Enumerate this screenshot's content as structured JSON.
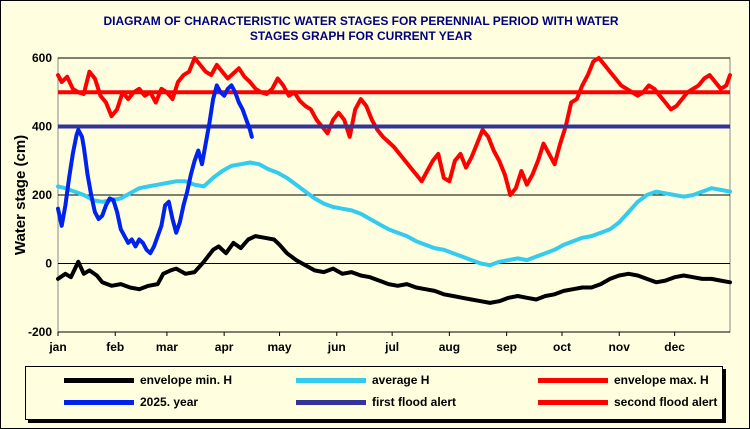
{
  "chart_data": {
    "type": "line",
    "title_line1": "DIAGRAM OF CHARACTERISTIC  WATER STAGES FOR PERENNIAL PERIOD WITH WATER",
    "title_line2": "STAGES GRAPH FOR CURRENT  YEAR",
    "ylabel": "Water stage (cm)",
    "xlabel": "",
    "ylim": [
      -200,
      600
    ],
    "yticks": [
      "600",
      "400",
      "200",
      "0",
      "-200"
    ],
    "ytick_values": [
      600,
      400,
      200,
      0,
      -200
    ],
    "xlim": [
      1,
      365
    ],
    "months": [
      "jan",
      "feb",
      "mar",
      "apr",
      "may",
      "jun",
      "jul",
      "aug",
      "sep",
      "oct",
      "nov",
      "dec"
    ],
    "month_days": [
      1,
      32,
      60,
      91,
      121,
      152,
      182,
      213,
      244,
      274,
      305,
      335
    ],
    "grid": true,
    "legend_position": "bottom",
    "series": [
      {
        "name": "envelope min. H",
        "color": "#000000",
        "x": [
          1,
          5,
          8,
          12,
          15,
          18,
          22,
          25,
          30,
          35,
          40,
          45,
          50,
          55,
          58,
          62,
          65,
          70,
          75,
          80,
          85,
          88,
          92,
          96,
          100,
          104,
          108,
          113,
          118,
          121,
          125,
          130,
          135,
          140,
          145,
          150,
          155,
          160,
          165,
          170,
          175,
          180,
          185,
          190,
          195,
          200,
          205,
          210,
          215,
          220,
          225,
          230,
          235,
          240,
          245,
          250,
          255,
          260,
          265,
          270,
          275,
          280,
          285,
          290,
          295,
          300,
          305,
          310,
          315,
          320,
          325,
          330,
          335,
          340,
          345,
          350,
          355,
          360,
          365
        ],
        "y": [
          -45,
          -30,
          -40,
          5,
          -30,
          -20,
          -35,
          -55,
          -65,
          -60,
          -70,
          -75,
          -65,
          -60,
          -30,
          -20,
          -15,
          -30,
          -25,
          5,
          40,
          50,
          30,
          60,
          45,
          70,
          80,
          75,
          70,
          55,
          30,
          10,
          -5,
          -20,
          -25,
          -15,
          -30,
          -25,
          -35,
          -40,
          -50,
          -60,
          -65,
          -60,
          -70,
          -75,
          -80,
          -90,
          -95,
          -100,
          -105,
          -110,
          -115,
          -110,
          -100,
          -95,
          -100,
          -105,
          -95,
          -90,
          -80,
          -75,
          -70,
          -70,
          -60,
          -45,
          -35,
          -30,
          -35,
          -45,
          -55,
          -50,
          -40,
          -35,
          -40,
          -45,
          -45,
          -50,
          -55
        ]
      },
      {
        "name": "average H",
        "color": "#33ccee",
        "x": [
          1,
          5,
          10,
          15,
          20,
          25,
          30,
          35,
          40,
          45,
          50,
          55,
          60,
          65,
          70,
          75,
          80,
          85,
          90,
          95,
          100,
          105,
          110,
          115,
          120,
          125,
          130,
          135,
          140,
          145,
          150,
          155,
          160,
          165,
          170,
          175,
          180,
          185,
          190,
          195,
          200,
          205,
          210,
          215,
          220,
          225,
          230,
          235,
          240,
          245,
          250,
          255,
          260,
          265,
          270,
          275,
          280,
          285,
          290,
          295,
          300,
          305,
          310,
          315,
          320,
          325,
          330,
          335,
          340,
          345,
          350,
          355,
          360,
          365
        ],
        "y": [
          225,
          220,
          210,
          200,
          185,
          180,
          185,
          190,
          205,
          220,
          225,
          230,
          235,
          240,
          240,
          230,
          225,
          250,
          270,
          285,
          290,
          295,
          290,
          275,
          265,
          250,
          230,
          210,
          190,
          175,
          165,
          160,
          155,
          145,
          130,
          115,
          100,
          90,
          80,
          65,
          55,
          45,
          40,
          30,
          20,
          10,
          0,
          -5,
          5,
          10,
          15,
          10,
          20,
          30,
          40,
          55,
          65,
          75,
          80,
          90,
          100,
          120,
          150,
          180,
          200,
          210,
          205,
          200,
          195,
          200,
          210,
          220,
          215,
          210
        ]
      },
      {
        "name": "envelope max. H",
        "color": "#ff0000",
        "x": [
          1,
          3,
          6,
          9,
          12,
          15,
          18,
          21,
          24,
          27,
          30,
          33,
          36,
          39,
          42,
          45,
          48,
          51,
          54,
          57,
          60,
          63,
          66,
          69,
          72,
          75,
          78,
          81,
          84,
          87,
          90,
          93,
          96,
          99,
          102,
          105,
          108,
          111,
          114,
          117,
          120,
          123,
          126,
          129,
          132,
          135,
          138,
          141,
          144,
          147,
          150,
          153,
          156,
          159,
          162,
          165,
          168,
          171,
          174,
          177,
          180,
          183,
          186,
          189,
          192,
          195,
          198,
          201,
          204,
          207,
          210,
          213,
          216,
          219,
          222,
          225,
          228,
          231,
          234,
          237,
          240,
          243,
          246,
          249,
          252,
          255,
          258,
          261,
          264,
          267,
          270,
          273,
          276,
          279,
          282,
          285,
          288,
          291,
          294,
          297,
          300,
          303,
          306,
          309,
          312,
          315,
          318,
          321,
          324,
          327,
          330,
          333,
          336,
          339,
          342,
          345,
          348,
          351,
          354,
          357,
          360,
          363,
          365
        ],
        "y": [
          550,
          530,
          545,
          510,
          500,
          495,
          560,
          540,
          490,
          470,
          430,
          450,
          500,
          480,
          500,
          510,
          490,
          500,
          470,
          510,
          500,
          480,
          530,
          550,
          560,
          600,
          580,
          560,
          550,
          580,
          560,
          540,
          555,
          570,
          545,
          530,
          510,
          500,
          495,
          510,
          540,
          520,
          490,
          500,
          475,
          460,
          450,
          420,
          400,
          380,
          420,
          440,
          420,
          370,
          450,
          480,
          460,
          420,
          390,
          370,
          355,
          340,
          320,
          300,
          280,
          260,
          240,
          270,
          300,
          320,
          250,
          240,
          300,
          320,
          280,
          310,
          350,
          390,
          370,
          330,
          300,
          260,
          200,
          220,
          270,
          230,
          260,
          300,
          350,
          320,
          290,
          350,
          400,
          470,
          480,
          520,
          550,
          590,
          600,
          580,
          560,
          540,
          520,
          510,
          500,
          490,
          500,
          520,
          510,
          490,
          470,
          450,
          460,
          480,
          500,
          510,
          520,
          540,
          550,
          530,
          510,
          520,
          550
        ]
      },
      {
        "name": "2025. year",
        "color": "#0022ee",
        "x": [
          1,
          3,
          5,
          7,
          9,
          11,
          12,
          13,
          14,
          15,
          16,
          17,
          19,
          21,
          23,
          25,
          27,
          29,
          31,
          33,
          35,
          37,
          39,
          41,
          43,
          45,
          47,
          49,
          51,
          53,
          55,
          57,
          59,
          61,
          63,
          65,
          67,
          69,
          71,
          73,
          75,
          77,
          79,
          81,
          83,
          85,
          87,
          89,
          91,
          93,
          95,
          97,
          99,
          101,
          103,
          105,
          106
        ],
        "y": [
          160,
          110,
          170,
          250,
          320,
          375,
          390,
          380,
          370,
          340,
          300,
          260,
          200,
          150,
          130,
          140,
          170,
          190,
          185,
          150,
          100,
          80,
          60,
          70,
          50,
          70,
          60,
          40,
          30,
          50,
          80,
          110,
          170,
          180,
          130,
          90,
          120,
          170,
          210,
          260,
          300,
          330,
          290,
          350,
          410,
          480,
          520,
          500,
          490,
          510,
          520,
          500,
          470,
          450,
          420,
          390,
          370
        ]
      }
    ],
    "hlines": [
      {
        "name": "first flood alert",
        "value": 400,
        "color": "#333399"
      },
      {
        "name": "second flood alert",
        "value": 500,
        "color": "#ff0000"
      }
    ]
  },
  "legend": {
    "items": [
      {
        "label": "envelope min. H",
        "color": "#000000"
      },
      {
        "label": "average H",
        "color": "#33ccee"
      },
      {
        "label": "envelope max. H",
        "color": "#ff0000"
      },
      {
        "label": "2025. year",
        "color": "#0022ee"
      },
      {
        "label": "first flood alert",
        "color": "#333399"
      },
      {
        "label": "second flood alert",
        "color": "#ff0000"
      }
    ]
  }
}
